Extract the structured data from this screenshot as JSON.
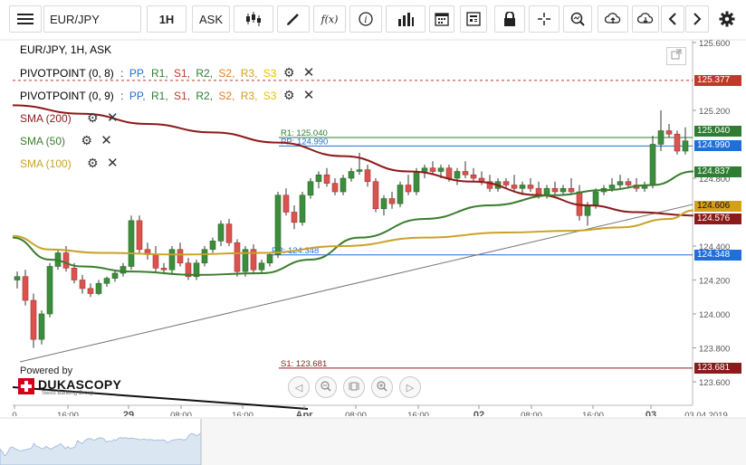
{
  "toolbar": {
    "symbol": "EUR/JPY",
    "period": "1H",
    "side": "ASK",
    "fx_label": "f(x)"
  },
  "legend": {
    "title": "EUR/JPY, 1H, ASK",
    "pivot1": {
      "name": "PIVOTPOINT (0, 8)",
      "sep": ":",
      "pp": "PP,",
      "r1": "R1,",
      "s1": "S1,",
      "r2": "R2,",
      "s2": "S2,",
      "r3": "R3,",
      "s3": "S3"
    },
    "pivot2": {
      "name": "PIVOTPOINT (0, 9)",
      "sep": ":",
      "pp": "PP,",
      "r1": "R1,",
      "s1": "S1,",
      "r2": "R2,",
      "s2": "S2,",
      "r3": "R3,",
      "s3": "S3"
    },
    "sma200": "SMA (200)",
    "sma50": "SMA (50)",
    "sma100": "SMA (100)"
  },
  "chart_data": {
    "type": "line",
    "title": "EUR/JPY, 1H, ASK",
    "y_ticks": [
      "125.600",
      "125.200",
      "124.800",
      "124.400",
      "124.200",
      "124.000",
      "123.800",
      "123.600"
    ],
    "y_tick_values": [
      125.6,
      125.2,
      124.8,
      124.4,
      124.2,
      124.0,
      123.8,
      123.6
    ],
    "ylim": [
      123.55,
      125.65
    ],
    "x_ticks": [
      "0",
      "16:00",
      "29",
      "08:00",
      "16:00",
      "Apr",
      "08:00",
      "16:00",
      "02",
      "08:00",
      "16:00",
      "03",
      "03.04.2019"
    ],
    "levels": [
      {
        "name": "R1",
        "label": "R1: 125.040",
        "value": 125.04,
        "color": "#2e7d32"
      },
      {
        "name": "PP",
        "label": "PP: 124.990",
        "value": 124.99,
        "color": "#1e6fd9"
      },
      {
        "name": "PP",
        "label": "PP: 124.348",
        "value": 124.348,
        "color": "#1e6fd9"
      },
      {
        "name": "S1",
        "label": "S1: 123.681",
        "value": 123.681,
        "color": "#8b1a1a"
      }
    ],
    "price_tags": [
      {
        "label": "125.377",
        "value": 125.377,
        "color": "#c0392b"
      },
      {
        "label": "125.040",
        "value": 125.04,
        "color": "#2e7d32"
      },
      {
        "label": "124.990",
        "value": 124.99,
        "color": "#1e6fd9"
      },
      {
        "label": "124.837",
        "value": 124.837,
        "color": "#2e7d32"
      },
      {
        "label": "124.606",
        "value": 124.606,
        "color": "#d4a017"
      },
      {
        "label": "124.576",
        "value": 124.576,
        "color": "#8b1a1a"
      },
      {
        "label": "124.348",
        "value": 124.348,
        "color": "#1e6fd9"
      },
      {
        "label": "123.681",
        "value": 123.681,
        "color": "#8b1a1a"
      }
    ],
    "candles": [
      [
        124.2,
        124.25,
        124.15,
        124.22
      ],
      [
        124.22,
        124.26,
        124.05,
        124.08
      ],
      [
        124.08,
        124.12,
        123.8,
        123.85
      ],
      [
        123.85,
        124.02,
        123.82,
        124.0
      ],
      [
        124.0,
        124.3,
        123.98,
        124.28
      ],
      [
        124.28,
        124.38,
        124.26,
        124.36
      ],
      [
        124.36,
        124.4,
        124.25,
        124.27
      ],
      [
        124.27,
        124.3,
        124.18,
        124.2
      ],
      [
        124.2,
        124.23,
        124.12,
        124.15
      ],
      [
        124.15,
        124.18,
        124.1,
        124.12
      ],
      [
        124.12,
        124.2,
        124.11,
        124.18
      ],
      [
        124.18,
        124.22,
        124.16,
        124.21
      ],
      [
        124.21,
        124.26,
        124.19,
        124.24
      ],
      [
        124.24,
        124.3,
        124.22,
        124.28
      ],
      [
        124.28,
        124.58,
        124.26,
        124.55
      ],
      [
        124.55,
        124.58,
        124.36,
        124.38
      ],
      [
        124.38,
        124.42,
        124.32,
        124.35
      ],
      [
        124.35,
        124.4,
        124.25,
        124.27
      ],
      [
        124.27,
        124.3,
        124.24,
        124.26
      ],
      [
        124.26,
        124.4,
        124.24,
        124.38
      ],
      [
        124.38,
        124.42,
        124.28,
        124.3
      ],
      [
        124.3,
        124.33,
        124.2,
        124.22
      ],
      [
        124.22,
        124.32,
        124.2,
        124.3
      ],
      [
        124.3,
        124.4,
        124.28,
        124.38
      ],
      [
        124.38,
        124.45,
        124.36,
        124.43
      ],
      [
        124.43,
        124.55,
        124.4,
        124.53
      ],
      [
        124.53,
        124.56,
        124.4,
        124.42
      ],
      [
        124.42,
        124.44,
        124.22,
        124.25
      ],
      [
        124.25,
        124.4,
        124.22,
        124.38
      ],
      [
        124.38,
        124.41,
        124.24,
        124.26
      ],
      [
        124.26,
        124.32,
        124.24,
        124.3
      ],
      [
        124.3,
        124.36,
        124.28,
        124.35
      ],
      [
        124.35,
        124.72,
        124.33,
        124.7
      ],
      [
        124.7,
        124.74,
        124.58,
        124.6
      ],
      [
        124.6,
        124.64,
        124.5,
        124.54
      ],
      [
        124.54,
        124.72,
        124.52,
        124.7
      ],
      [
        124.7,
        124.8,
        124.68,
        124.78
      ],
      [
        124.78,
        124.84,
        124.74,
        124.82
      ],
      [
        124.82,
        124.86,
        124.75,
        124.77
      ],
      [
        124.77,
        124.8,
        124.7,
        124.72
      ],
      [
        124.72,
        124.82,
        124.7,
        124.8
      ],
      [
        124.8,
        124.86,
        124.78,
        124.84
      ],
      [
        124.84,
        124.95,
        124.82,
        124.85
      ],
      [
        124.85,
        124.88,
        124.75,
        124.78
      ],
      [
        124.78,
        124.8,
        124.6,
        124.62
      ],
      [
        124.62,
        124.7,
        124.58,
        124.68
      ],
      [
        124.68,
        124.72,
        124.62,
        124.65
      ],
      [
        124.65,
        124.78,
        124.63,
        124.76
      ],
      [
        124.76,
        124.82,
        124.7,
        124.72
      ],
      [
        124.72,
        124.86,
        124.7,
        124.84
      ],
      [
        124.84,
        124.88,
        124.8,
        124.86
      ],
      [
        124.86,
        124.9,
        124.82,
        124.84
      ],
      [
        124.84,
        124.88,
        124.8,
        124.86
      ],
      [
        124.86,
        124.88,
        124.78,
        124.8
      ],
      [
        124.8,
        124.86,
        124.76,
        124.84
      ],
      [
        124.84,
        124.9,
        124.8,
        124.82
      ],
      [
        124.82,
        124.86,
        124.78,
        124.8
      ],
      [
        124.8,
        124.84,
        124.76,
        124.78
      ],
      [
        124.78,
        124.82,
        124.72,
        124.74
      ],
      [
        124.74,
        124.8,
        124.72,
        124.78
      ],
      [
        124.78,
        124.8,
        124.74,
        124.76
      ],
      [
        124.76,
        124.82,
        124.72,
        124.74
      ],
      [
        124.74,
        124.78,
        124.7,
        124.76
      ],
      [
        124.76,
        124.8,
        124.72,
        124.74
      ],
      [
        124.74,
        124.78,
        124.68,
        124.7
      ],
      [
        124.7,
        124.76,
        124.68,
        124.74
      ],
      [
        124.74,
        124.78,
        124.7,
        124.72
      ],
      [
        124.72,
        124.76,
        124.7,
        124.74
      ],
      [
        124.74,
        124.8,
        124.7,
        124.72
      ],
      [
        124.72,
        124.76,
        124.55,
        124.58
      ],
      [
        124.58,
        124.66,
        124.52,
        124.64
      ],
      [
        124.64,
        124.74,
        124.62,
        124.72
      ],
      [
        124.72,
        124.76,
        124.7,
        124.74
      ],
      [
        124.74,
        124.8,
        124.72,
        124.76
      ],
      [
        124.76,
        124.82,
        124.74,
        124.78
      ],
      [
        124.78,
        124.8,
        124.74,
        124.76
      ],
      [
        124.76,
        124.8,
        124.72,
        124.74
      ],
      [
        124.74,
        124.78,
        124.72,
        124.76
      ],
      [
        124.76,
        125.05,
        124.74,
        125.0
      ],
      [
        125.0,
        125.2,
        124.96,
        125.08
      ],
      [
        125.08,
        125.12,
        125.04,
        125.06
      ],
      [
        125.06,
        125.08,
        124.94,
        124.96
      ],
      [
        124.96,
        125.1,
        124.94,
        125.02
      ],
      [
        125.02,
        125.2,
        125.0,
        125.12
      ]
    ],
    "series": [
      {
        "name": "SMA (200)",
        "color": "#8b1a1a",
        "points": [
          [
            0,
            125.23
          ],
          [
            8,
            125.18
          ],
          [
            16,
            125.12
          ],
          [
            24,
            125.07
          ],
          [
            32,
            125.01
          ],
          [
            40,
            124.93
          ],
          [
            48,
            124.84
          ],
          [
            56,
            124.78
          ],
          [
            64,
            124.7
          ],
          [
            70,
            124.64
          ],
          [
            76,
            124.6
          ],
          [
            83,
            124.58
          ]
        ]
      },
      {
        "name": "SMA (50)",
        "color": "#3a7d2e",
        "points": [
          [
            0,
            124.45
          ],
          [
            4,
            124.32
          ],
          [
            8,
            124.28
          ],
          [
            14,
            124.25
          ],
          [
            22,
            124.23
          ],
          [
            30,
            124.24
          ],
          [
            36,
            124.32
          ],
          [
            42,
            124.45
          ],
          [
            50,
            124.56
          ],
          [
            58,
            124.64
          ],
          [
            66,
            124.7
          ],
          [
            72,
            124.73
          ],
          [
            78,
            124.76
          ],
          [
            83,
            124.84
          ]
        ]
      },
      {
        "name": "SMA (100)",
        "color": "#c9a227",
        "points": [
          [
            0,
            124.46
          ],
          [
            4,
            124.38
          ],
          [
            10,
            124.36
          ],
          [
            20,
            124.35
          ],
          [
            30,
            124.36
          ],
          [
            40,
            124.4
          ],
          [
            50,
            124.45
          ],
          [
            60,
            124.48
          ],
          [
            68,
            124.49
          ],
          [
            74,
            124.51
          ],
          [
            80,
            124.56
          ],
          [
            83,
            124.61
          ]
        ]
      }
    ]
  },
  "branding": {
    "powered_by": "Powered by",
    "logo_text": "DUKASCOPY",
    "tagline": "Swiss Banking Group"
  }
}
